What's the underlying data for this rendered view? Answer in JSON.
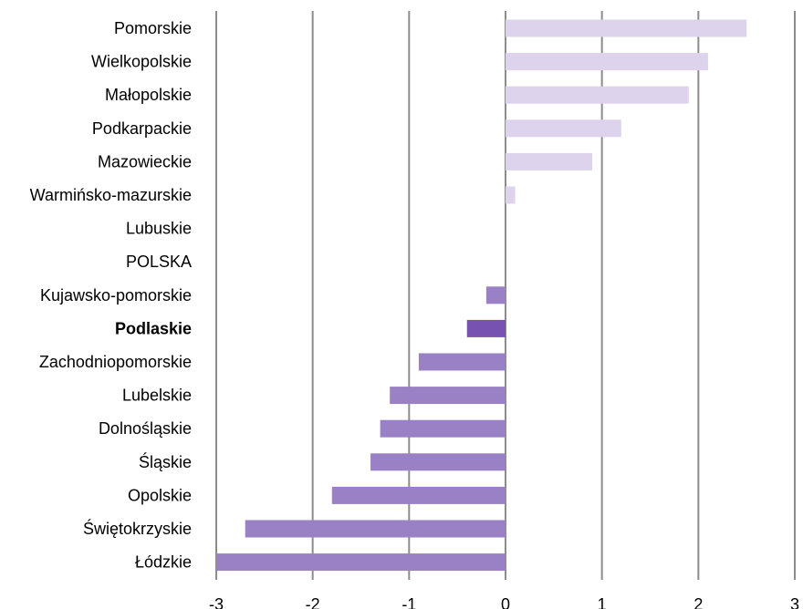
{
  "chart_data": {
    "type": "bar",
    "orientation": "horizontal",
    "categories": [
      "Pomorskie",
      "Wielkopolskie",
      "Małopolskie",
      "Podkarpackie",
      "Mazowieckie",
      "Warmińsko-mazurskie",
      "Lubuskie",
      "POLSKA",
      "Kujawsko-pomorskie",
      "Podlaskie",
      "Zachodniopomorskie",
      "Lubelskie",
      "Dolnośląskie",
      "Śląskie",
      "Opolskie",
      "Świętokrzyskie",
      "Łódzkie"
    ],
    "values": [
      2.5,
      2.1,
      1.9,
      1.2,
      0.9,
      0.1,
      0,
      0,
      -0.2,
      -0.4,
      -0.9,
      -1.2,
      -1.3,
      -1.4,
      -1.8,
      -2.7,
      -3.0
    ],
    "highlight": "Podlaskie",
    "xlim": [
      -3,
      3
    ],
    "xticks": [
      -3,
      -2,
      -1,
      0,
      1,
      2,
      3
    ],
    "grid": true,
    "legend": "none",
    "title": "",
    "xlabel": "",
    "ylabel": "",
    "colors": {
      "positive": "#ddd3ec",
      "negative": "#9a80c4",
      "highlight": "#7752b0",
      "grid": "#8c8c8c"
    }
  }
}
